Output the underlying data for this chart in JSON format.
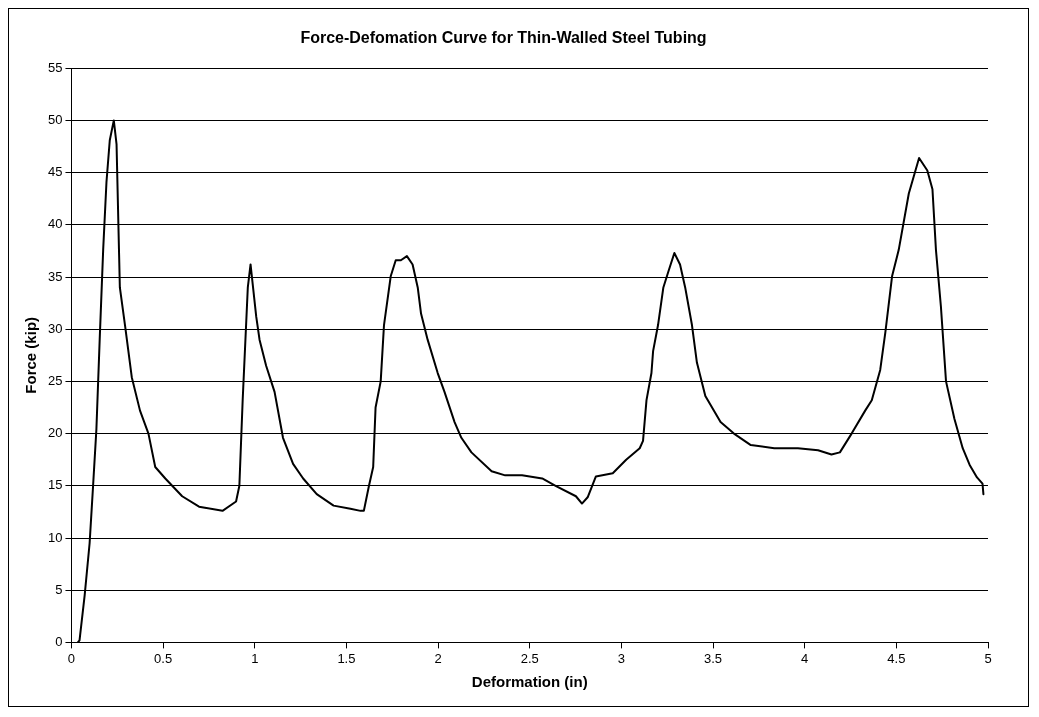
{
  "chart_data": {
    "type": "line",
    "title": "Force-Defomation Curve for Thin-Walled Steel Tubing",
    "xlabel": "Deformation (in)",
    "ylabel": "Force (kip)",
    "xlim": [
      0,
      5
    ],
    "xticks": [
      0,
      0.5,
      1,
      1.5,
      2,
      2.5,
      3,
      3.5,
      4,
      4.5,
      5
    ],
    "ylim": [
      0,
      55
    ],
    "yticks": [
      0,
      5,
      10,
      15,
      20,
      25,
      30,
      35,
      40,
      45,
      50,
      55
    ],
    "grid": "y",
    "legend": false,
    "marker": "none",
    "line_style": "solid",
    "series": [
      {
        "color": "#000000",
        "x": [
          0.035,
          0.044,
          0.072,
          0.099,
          0.118,
          0.136,
          0.154,
          0.173,
          0.191,
          0.209,
          0.231,
          0.246,
          0.264,
          0.292,
          0.329,
          0.374,
          0.42,
          0.457,
          0.512,
          0.604,
          0.696,
          0.824,
          0.898,
          0.916,
          0.934,
          0.962,
          0.977,
          1.008,
          1.026,
          1.062,
          1.108,
          1.154,
          1.209,
          1.264,
          1.338,
          1.43,
          1.522,
          1.577,
          1.595,
          1.623,
          1.646,
          1.659,
          1.687,
          1.705,
          1.742,
          1.769,
          1.797,
          1.83,
          1.861,
          1.889,
          1.907,
          1.943,
          1.998,
          2.035,
          2.09,
          2.127,
          2.182,
          2.292,
          2.366,
          2.458,
          2.568,
          2.641,
          2.752,
          2.785,
          2.816,
          2.861,
          2.953,
          3.026,
          3.1,
          3.118,
          3.137,
          3.164,
          3.173,
          3.2,
          3.229,
          3.256,
          3.289,
          3.32,
          3.348,
          3.385,
          3.412,
          3.458,
          3.541,
          3.614,
          3.706,
          3.834,
          3.963,
          4.073,
          4.146,
          4.192,
          4.256,
          4.33,
          4.366,
          4.412,
          4.44,
          4.477,
          4.513,
          4.568,
          4.624,
          4.669,
          4.697,
          4.716,
          4.743,
          4.771,
          4.817,
          4.862,
          4.9,
          4.94,
          4.97,
          4.975
        ],
        "values": [
          0,
          0.2,
          4.5,
          9.5,
          15,
          20.4,
          29,
          37.6,
          44.1,
          48.1,
          50,
          47.7,
          34,
          30.4,
          25.4,
          22.2,
          20,
          16.8,
          15.7,
          14,
          13,
          12.6,
          13.5,
          15,
          23.2,
          34,
          36.2,
          31.2,
          29,
          26.5,
          24,
          19.6,
          17.1,
          15.7,
          14.2,
          13.1,
          12.8,
          12.6,
          12.6,
          15,
          16.8,
          22.5,
          25,
          30.4,
          35.1,
          36.6,
          36.6,
          37,
          36.2,
          34,
          31.5,
          29,
          25.8,
          24,
          21.1,
          19.6,
          18.2,
          16.4,
          16,
          16,
          15.7,
          15,
          14,
          13.3,
          13.9,
          15.9,
          16.2,
          17.5,
          18.6,
          19.3,
          23.2,
          25.8,
          27.9,
          30.4,
          34,
          35.5,
          37.3,
          36.2,
          34,
          30.4,
          26.8,
          23.6,
          21.1,
          20,
          18.9,
          18.6,
          18.6,
          18.4,
          18,
          18.2,
          20,
          22.2,
          23.2,
          26.1,
          29.7,
          35.1,
          37.6,
          43,
          46.4,
          45.2,
          43.4,
          37.6,
          32.2,
          25,
          21.4,
          18.6,
          17,
          15.8,
          15.2,
          14.2
        ]
      }
    ]
  }
}
